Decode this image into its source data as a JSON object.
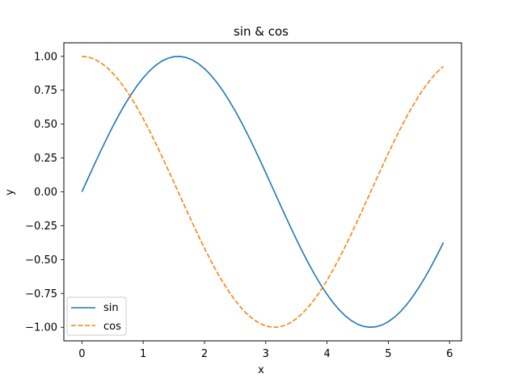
{
  "chart_data": {
    "type": "line",
    "title": "sin & cos",
    "xlabel": "x",
    "ylabel": "y",
    "xlim": [
      -0.295,
      6.195
    ],
    "ylim": [
      -1.1,
      1.1
    ],
    "x_ticks": [
      0,
      1,
      2,
      3,
      4,
      5,
      6
    ],
    "x_tick_labels": [
      "0",
      "1",
      "2",
      "3",
      "4",
      "5",
      "6"
    ],
    "y_ticks": [
      1.0,
      0.75,
      0.5,
      0.25,
      0.0,
      -0.25,
      -0.5,
      -0.75,
      -1.0
    ],
    "y_tick_labels": [
      "1.00",
      "0.75",
      "0.50",
      "0.25",
      "0.00",
      "−0.25",
      "−0.50",
      "−0.75",
      "−1.00"
    ],
    "grid": false,
    "legend_position": "lower-left",
    "x": [
      0,
      0.1,
      0.2,
      0.3,
      0.4,
      0.5,
      0.6,
      0.7,
      0.8,
      0.9,
      1.0,
      1.1,
      1.2,
      1.3,
      1.4,
      1.5,
      1.6,
      1.7,
      1.8,
      1.9,
      2.0,
      2.1,
      2.2,
      2.3,
      2.4,
      2.5,
      2.6,
      2.7,
      2.8,
      2.9,
      3.0,
      3.1,
      3.2,
      3.3,
      3.4,
      3.5,
      3.6,
      3.7,
      3.8,
      3.9,
      4.0,
      4.1,
      4.2,
      4.3,
      4.4,
      4.5,
      4.6,
      4.7,
      4.8,
      4.9,
      5.0,
      5.1,
      5.2,
      5.3,
      5.4,
      5.5,
      5.6,
      5.7,
      5.8,
      5.9
    ],
    "series": [
      {
        "name": "sin",
        "color": "#1f77b4",
        "style": "solid",
        "values": [
          0.0,
          0.0998,
          0.1987,
          0.2955,
          0.3894,
          0.4794,
          0.5646,
          0.6442,
          0.7174,
          0.7833,
          0.8415,
          0.8912,
          0.932,
          0.9636,
          0.9854,
          0.9975,
          0.9996,
          0.9917,
          0.9738,
          0.9463,
          0.9093,
          0.8632,
          0.8085,
          0.7457,
          0.6755,
          0.5985,
          0.5155,
          0.4274,
          0.335,
          0.2392,
          0.1411,
          0.0416,
          -0.0584,
          -0.1577,
          -0.2555,
          -0.3508,
          -0.4425,
          -0.5298,
          -0.6119,
          -0.6878,
          -0.7568,
          -0.8183,
          -0.8716,
          -0.9162,
          -0.9516,
          -0.9775,
          -0.9937,
          -0.9999,
          -0.9962,
          -0.9825,
          -0.9589,
          -0.9258,
          -0.8835,
          -0.8323,
          -0.7728,
          -0.7055,
          -0.6313,
          -0.5507,
          -0.4646,
          -0.3739
        ]
      },
      {
        "name": "cos",
        "color": "#ff7f0e",
        "style": "dashed",
        "values": [
          1.0,
          0.995,
          0.9801,
          0.9553,
          0.9211,
          0.8776,
          0.8253,
          0.7648,
          0.6967,
          0.6216,
          0.5403,
          0.4536,
          0.3624,
          0.2675,
          0.17,
          0.0707,
          -0.0292,
          -0.1288,
          -0.2272,
          -0.3233,
          -0.4161,
          -0.5048,
          -0.5885,
          -0.6663,
          -0.7374,
          -0.8011,
          -0.8569,
          -0.9041,
          -0.9422,
          -0.971,
          -0.99,
          -0.9991,
          -0.9983,
          -0.9875,
          -0.9668,
          -0.9365,
          -0.8968,
          -0.8481,
          -0.791,
          -0.7259,
          -0.6536,
          -0.5748,
          -0.4903,
          -0.4008,
          -0.3073,
          -0.2108,
          -0.1122,
          -0.0124,
          0.0875,
          0.1865,
          0.2837,
          0.378,
          0.4685,
          0.5544,
          0.6347,
          0.7087,
          0.7756,
          0.8347,
          0.8855,
          0.9275
        ]
      }
    ]
  }
}
